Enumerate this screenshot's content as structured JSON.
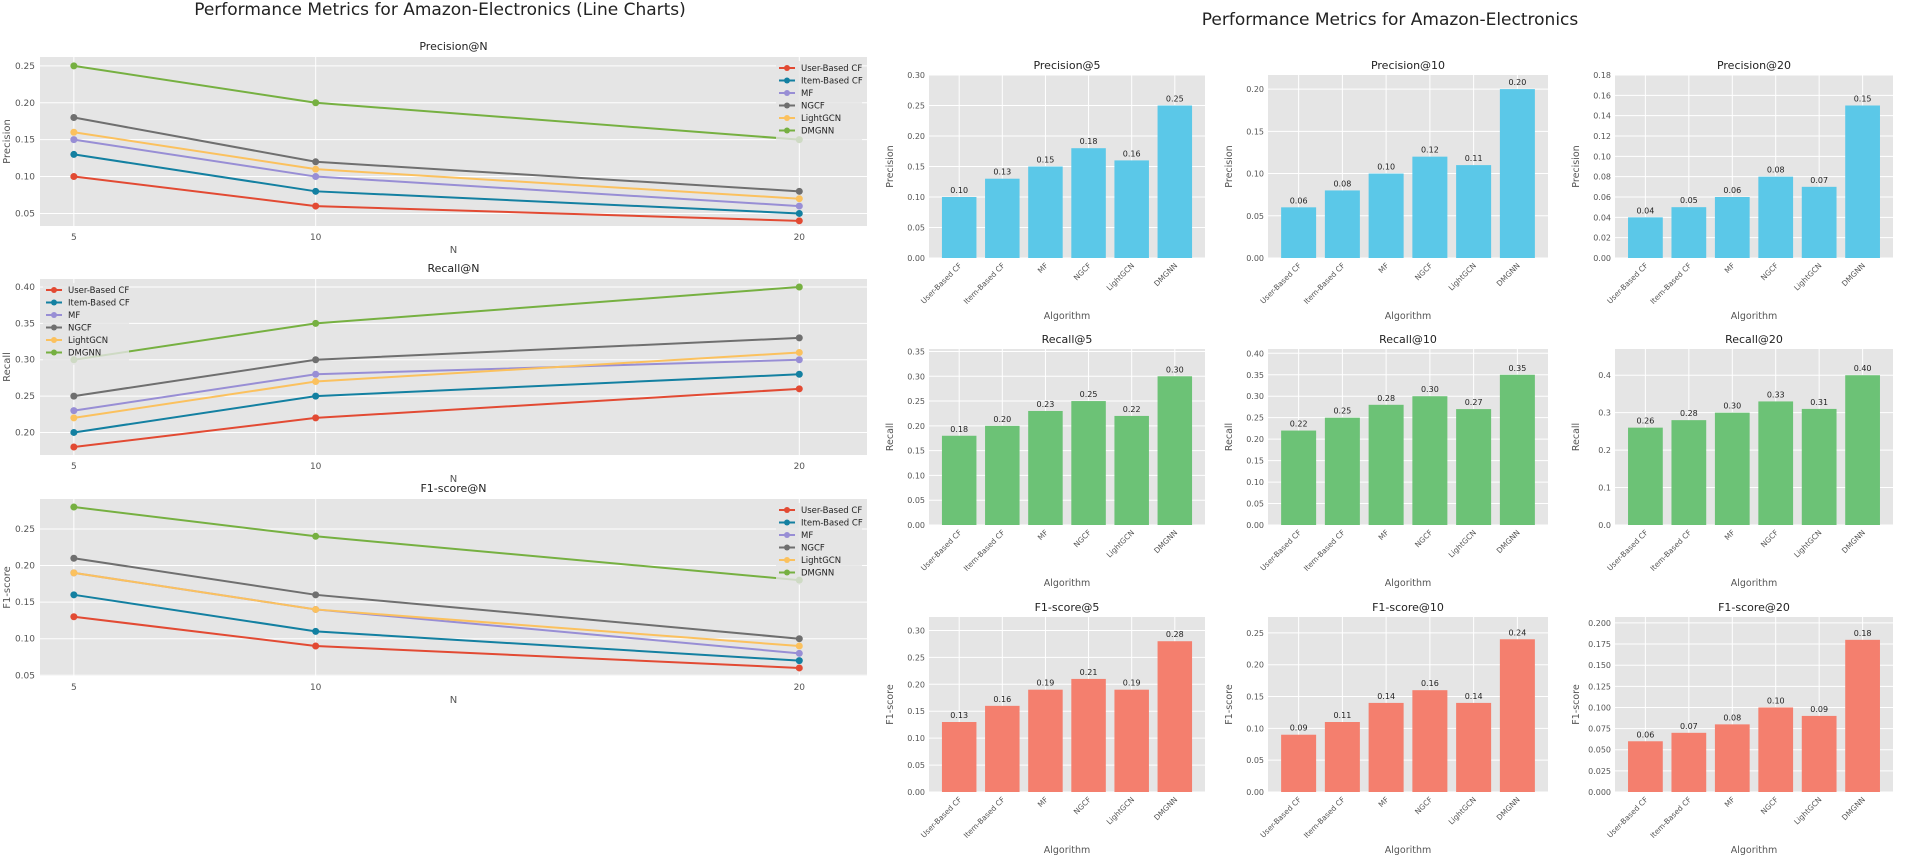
{
  "left_title": "Performance Metrics for Amazon-Electronics (Line Charts)",
  "right_title": "Performance Metrics for Amazon-Electronics",
  "colors": {
    "User-Based CF": "#e24a33",
    "Item-Based CF": "#1380a1",
    "MF": "#988ed5",
    "NGCF": "#6f6f6f",
    "LightGCN": "#fbc15e",
    "DMGNN": "#76b041",
    "precision_bar": "#5bc8e8",
    "recall_bar": "#6cc276",
    "f1_bar": "#f47f6e"
  },
  "chart_data": [
    {
      "type": "line",
      "id": "line-precision",
      "title": "Precision@N",
      "xlabel": "N",
      "ylabel": "Precision",
      "x": [
        5,
        10,
        20
      ],
      "xlim": [
        4.3,
        21.4
      ],
      "ylim": [
        0.033,
        0.262
      ],
      "yticks": [
        0.05,
        0.1,
        0.15,
        0.2,
        0.25
      ],
      "ytick_labels": [
        "0.05",
        "0.10",
        "0.15",
        "0.20",
        "0.25"
      ],
      "legend": "top-right",
      "series": [
        {
          "name": "User-Based CF",
          "values": [
            0.1,
            0.06,
            0.04
          ]
        },
        {
          "name": "Item-Based CF",
          "values": [
            0.13,
            0.08,
            0.05
          ]
        },
        {
          "name": "MF",
          "values": [
            0.15,
            0.1,
            0.06
          ]
        },
        {
          "name": "NGCF",
          "values": [
            0.18,
            0.12,
            0.08
          ]
        },
        {
          "name": "LightGCN",
          "values": [
            0.16,
            0.11,
            0.07
          ]
        },
        {
          "name": "DMGNN",
          "values": [
            0.25,
            0.2,
            0.15
          ]
        }
      ]
    },
    {
      "type": "line",
      "id": "line-recall",
      "title": "Recall@N",
      "xlabel": "N",
      "ylabel": "Recall",
      "x": [
        5,
        10,
        20
      ],
      "xlim": [
        4.3,
        21.4
      ],
      "ylim": [
        0.169,
        0.411
      ],
      "yticks": [
        0.2,
        0.25,
        0.3,
        0.35,
        0.4
      ],
      "ytick_labels": [
        "0.20",
        "0.25",
        "0.30",
        "0.35",
        "0.40"
      ],
      "legend": "top-left",
      "series": [
        {
          "name": "User-Based CF",
          "values": [
            0.18,
            0.22,
            0.26
          ]
        },
        {
          "name": "Item-Based CF",
          "values": [
            0.2,
            0.25,
            0.28
          ]
        },
        {
          "name": "MF",
          "values": [
            0.23,
            0.28,
            0.3
          ]
        },
        {
          "name": "NGCF",
          "values": [
            0.25,
            0.3,
            0.33
          ]
        },
        {
          "name": "LightGCN",
          "values": [
            0.22,
            0.27,
            0.31
          ]
        },
        {
          "name": "DMGNN",
          "values": [
            0.3,
            0.35,
            0.4
          ]
        }
      ]
    },
    {
      "type": "line",
      "id": "line-f1",
      "title": "F1-score@N",
      "xlabel": "N",
      "ylabel": "F1-score",
      "x": [
        5,
        10,
        20
      ],
      "xlim": [
        4.3,
        21.4
      ],
      "ylim": [
        0.049,
        0.291
      ],
      "yticks": [
        0.05,
        0.1,
        0.15,
        0.2,
        0.25
      ],
      "ytick_labels": [
        "0.05",
        "0.10",
        "0.15",
        "0.20",
        "0.25"
      ],
      "legend": "top-right",
      "series": [
        {
          "name": "User-Based CF",
          "values": [
            0.13,
            0.09,
            0.06
          ]
        },
        {
          "name": "Item-Based CF",
          "values": [
            0.16,
            0.11,
            0.07
          ]
        },
        {
          "name": "MF",
          "values": [
            0.19,
            0.14,
            0.08
          ]
        },
        {
          "name": "NGCF",
          "values": [
            0.21,
            0.16,
            0.1
          ]
        },
        {
          "name": "LightGCN",
          "values": [
            0.19,
            0.14,
            0.09
          ]
        },
        {
          "name": "DMGNN",
          "values": [
            0.28,
            0.24,
            0.18
          ]
        }
      ]
    },
    {
      "type": "bar",
      "id": "bar-precision-5",
      "metric": "precision",
      "title": "Precision@5",
      "xlabel": "Algorithm",
      "ylabel": "Precision",
      "categories": [
        "User-Based CF",
        "Item-Based CF",
        "MF",
        "NGCF",
        "LightGCN",
        "DMGNN"
      ],
      "values": [
        0.1,
        0.13,
        0.15,
        0.18,
        0.16,
        0.25
      ],
      "value_labels": [
        "0.10",
        "0.13",
        "0.15",
        "0.18",
        "0.16",
        "0.25"
      ],
      "ylim": [
        0,
        0.3
      ],
      "yticks": [
        0,
        0.05,
        0.1,
        0.15,
        0.2,
        0.25,
        0.3
      ],
      "ytick_labels": [
        "0.00",
        "0.05",
        "0.10",
        "0.15",
        "0.20",
        "0.25",
        "0.30"
      ]
    },
    {
      "type": "bar",
      "id": "bar-precision-10",
      "metric": "precision",
      "title": "Precision@10",
      "xlabel": "Algorithm",
      "ylabel": "Precision",
      "categories": [
        "User-Based CF",
        "Item-Based CF",
        "MF",
        "NGCF",
        "LightGCN",
        "DMGNN"
      ],
      "values": [
        0.06,
        0.08,
        0.1,
        0.12,
        0.11,
        0.2
      ],
      "value_labels": [
        "0.06",
        "0.08",
        "0.10",
        "0.12",
        "0.11",
        "0.20"
      ],
      "ylim": [
        0,
        0.2167
      ],
      "yticks": [
        0,
        0.05,
        0.1,
        0.15,
        0.2
      ],
      "ytick_labels": [
        "0.00",
        "0.05",
        "0.10",
        "0.15",
        "0.20"
      ]
    },
    {
      "type": "bar",
      "id": "bar-precision-20",
      "metric": "precision",
      "title": "Precision@20",
      "xlabel": "Algorithm",
      "ylabel": "Precision",
      "categories": [
        "User-Based CF",
        "Item-Based CF",
        "MF",
        "NGCF",
        "LightGCN",
        "DMGNN"
      ],
      "values": [
        0.04,
        0.05,
        0.06,
        0.08,
        0.07,
        0.15
      ],
      "value_labels": [
        "0.04",
        "0.05",
        "0.06",
        "0.08",
        "0.07",
        "0.15"
      ],
      "ylim": [
        0,
        0.18
      ],
      "yticks": [
        0,
        0.02,
        0.04,
        0.06,
        0.08,
        0.1,
        0.12,
        0.14,
        0.16,
        0.18
      ],
      "ytick_labels": [
        "0.00",
        "0.02",
        "0.04",
        "0.06",
        "0.08",
        "0.10",
        "0.12",
        "0.14",
        "0.16",
        "0.18"
      ]
    },
    {
      "type": "bar",
      "id": "bar-recall-5",
      "metric": "recall",
      "title": "Recall@5",
      "xlabel": "Algorithm",
      "ylabel": "Recall",
      "categories": [
        "User-Based CF",
        "Item-Based CF",
        "MF",
        "NGCF",
        "LightGCN",
        "DMGNN"
      ],
      "values": [
        0.18,
        0.2,
        0.23,
        0.25,
        0.22,
        0.3
      ],
      "value_labels": [
        "0.18",
        "0.20",
        "0.23",
        "0.25",
        "0.22",
        "0.30"
      ],
      "ylim": [
        0,
        0.355
      ],
      "yticks": [
        0,
        0.05,
        0.1,
        0.15,
        0.2,
        0.25,
        0.3,
        0.35
      ],
      "ytick_labels": [
        "0.00",
        "0.05",
        "0.10",
        "0.15",
        "0.20",
        "0.25",
        "0.30",
        "0.35"
      ]
    },
    {
      "type": "bar",
      "id": "bar-recall-10",
      "metric": "recall",
      "title": "Recall@10",
      "xlabel": "Algorithm",
      "ylabel": "Recall",
      "categories": [
        "User-Based CF",
        "Item-Based CF",
        "MF",
        "NGCF",
        "LightGCN",
        "DMGNN"
      ],
      "values": [
        0.22,
        0.25,
        0.28,
        0.3,
        0.27,
        0.35
      ],
      "value_labels": [
        "0.22",
        "0.25",
        "0.28",
        "0.30",
        "0.27",
        "0.35"
      ],
      "ylim": [
        0,
        0.41
      ],
      "yticks": [
        0,
        0.05,
        0.1,
        0.15,
        0.2,
        0.25,
        0.3,
        0.35,
        0.4
      ],
      "ytick_labels": [
        "0.00",
        "0.05",
        "0.10",
        "0.15",
        "0.20",
        "0.25",
        "0.30",
        "0.35",
        "0.40"
      ]
    },
    {
      "type": "bar",
      "id": "bar-recall-20",
      "metric": "recall",
      "title": "Recall@20",
      "xlabel": "Algorithm",
      "ylabel": "Recall",
      "categories": [
        "User-Based CF",
        "Item-Based CF",
        "MF",
        "NGCF",
        "LightGCN",
        "DMGNN"
      ],
      "values": [
        0.26,
        0.28,
        0.3,
        0.33,
        0.31,
        0.4
      ],
      "value_labels": [
        "0.26",
        "0.28",
        "0.30",
        "0.33",
        "0.31",
        "0.40"
      ],
      "ylim": [
        0,
        0.47
      ],
      "yticks": [
        0,
        0.1,
        0.2,
        0.3,
        0.4
      ],
      "ytick_labels": [
        "0.0",
        "0.1",
        "0.2",
        "0.3",
        "0.4"
      ]
    },
    {
      "type": "bar",
      "id": "bar-f1-5",
      "metric": "f1",
      "title": "F1-score@5",
      "xlabel": "Algorithm",
      "ylabel": "F1-score",
      "categories": [
        "User-Based CF",
        "Item-Based CF",
        "MF",
        "NGCF",
        "LightGCN",
        "DMGNN"
      ],
      "values": [
        0.13,
        0.16,
        0.19,
        0.21,
        0.19,
        0.28
      ],
      "value_labels": [
        "0.13",
        "0.16",
        "0.19",
        "0.21",
        "0.19",
        "0.28"
      ],
      "ylim": [
        0,
        0.325
      ],
      "yticks": [
        0,
        0.05,
        0.1,
        0.15,
        0.2,
        0.25,
        0.3
      ],
      "ytick_labels": [
        "0.00",
        "0.05",
        "0.10",
        "0.15",
        "0.20",
        "0.25",
        "0.30"
      ]
    },
    {
      "type": "bar",
      "id": "bar-f1-10",
      "metric": "f1",
      "title": "F1-score@10",
      "xlabel": "Algorithm",
      "ylabel": "F1-score",
      "categories": [
        "User-Based CF",
        "Item-Based CF",
        "MF",
        "NGCF",
        "LightGCN",
        "DMGNN"
      ],
      "values": [
        0.09,
        0.11,
        0.14,
        0.16,
        0.14,
        0.24
      ],
      "value_labels": [
        "0.09",
        "0.11",
        "0.14",
        "0.16",
        "0.14",
        "0.24"
      ],
      "ylim": [
        0,
        0.275
      ],
      "yticks": [
        0,
        0.05,
        0.1,
        0.15,
        0.2,
        0.25
      ],
      "ytick_labels": [
        "0.00",
        "0.05",
        "0.10",
        "0.15",
        "0.20",
        "0.25"
      ]
    },
    {
      "type": "bar",
      "id": "bar-f1-20",
      "metric": "f1",
      "title": "F1-score@20",
      "xlabel": "Algorithm",
      "ylabel": "F1-score",
      "categories": [
        "User-Based CF",
        "Item-Based CF",
        "MF",
        "NGCF",
        "LightGCN",
        "DMGNN"
      ],
      "values": [
        0.06,
        0.07,
        0.08,
        0.1,
        0.09,
        0.18
      ],
      "value_labels": [
        "0.06",
        "0.07",
        "0.08",
        "0.10",
        "0.09",
        "0.18"
      ],
      "ylim": [
        0,
        0.207
      ],
      "yticks": [
        0,
        0.025,
        0.05,
        0.075,
        0.1,
        0.125,
        0.15,
        0.175,
        0.2
      ],
      "ytick_labels": [
        "0.000",
        "0.025",
        "0.050",
        "0.075",
        "0.100",
        "0.125",
        "0.150",
        "0.175",
        "0.200"
      ]
    }
  ]
}
